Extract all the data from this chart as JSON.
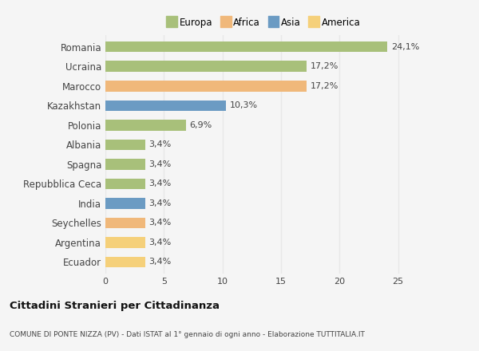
{
  "categories": [
    "Romania",
    "Ucraina",
    "Marocco",
    "Kazakhstan",
    "Polonia",
    "Albania",
    "Spagna",
    "Repubblica Ceca",
    "India",
    "Seychelles",
    "Argentina",
    "Ecuador"
  ],
  "values": [
    24.1,
    17.2,
    17.2,
    10.3,
    6.9,
    3.4,
    3.4,
    3.4,
    3.4,
    3.4,
    3.4,
    3.4
  ],
  "colors": [
    "#a8c07a",
    "#a8c07a",
    "#f0b87a",
    "#6b9bc3",
    "#a8c07a",
    "#a8c07a",
    "#a8c07a",
    "#a8c07a",
    "#6b9bc3",
    "#f0b87a",
    "#f5d07a",
    "#f5d07a"
  ],
  "labels": [
    "24,1%",
    "17,2%",
    "17,2%",
    "10,3%",
    "6,9%",
    "3,4%",
    "3,4%",
    "3,4%",
    "3,4%",
    "3,4%",
    "3,4%",
    "3,4%"
  ],
  "legend_labels": [
    "Europa",
    "Africa",
    "Asia",
    "America"
  ],
  "legend_colors": [
    "#a8c07a",
    "#f0b87a",
    "#6b9bc3",
    "#f5d07a"
  ],
  "xlim": [
    0,
    27
  ],
  "title": "Cittadini Stranieri per Cittadinanza",
  "subtitle": "COMUNE DI PONTE NIZZA (PV) - Dati ISTAT al 1° gennaio di ogni anno - Elaborazione TUTTITALIA.IT",
  "background_color": "#f5f5f5",
  "grid_color": "#e8e8e8",
  "xticks": [
    0,
    5,
    10,
    15,
    20,
    25
  ],
  "bar_height": 0.55
}
